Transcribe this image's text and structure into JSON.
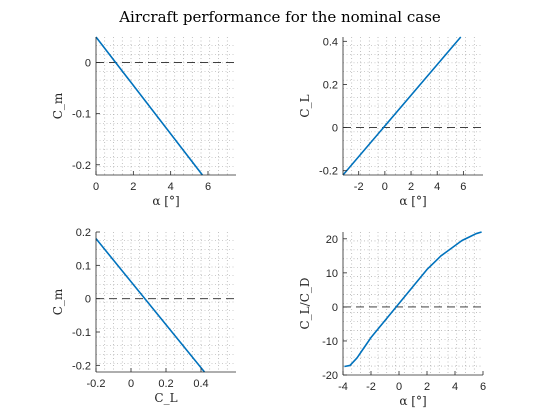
{
  "figure": {
    "title": "Aircraft performance for the nominal case"
  },
  "colors": {
    "series": "#0072BD",
    "reference": "#262626",
    "axis": "#262626",
    "grid": "#9a9a9a"
  },
  "chart_data": [
    {
      "type": "line",
      "xlabel": "α [°]",
      "ylabel": "C_m",
      "xlim": [
        0,
        7.5
      ],
      "ylim": [
        -0.22,
        0.05
      ],
      "xticks": [
        0,
        2,
        4,
        6
      ],
      "yticks": [
        -0.2,
        -0.1,
        0
      ],
      "xtick_labels": [
        "0",
        "2",
        "4",
        "6"
      ],
      "ytick_labels": [
        "-0.2",
        "-0.1",
        "0"
      ],
      "grid": "minor-dotted",
      "reference_line_y": 0,
      "series": [
        {
          "x": [
            0,
            5.7
          ],
          "y": [
            0.05,
            -0.22
          ]
        }
      ]
    },
    {
      "type": "line",
      "xlabel": "α [°]",
      "ylabel": "C_L",
      "xlim": [
        -3.2,
        7.5
      ],
      "ylim": [
        -0.22,
        0.42
      ],
      "xticks": [
        -2,
        0,
        2,
        4,
        6
      ],
      "yticks": [
        -0.2,
        0,
        0.2,
        0.4
      ],
      "xtick_labels": [
        "-2",
        "0",
        "2",
        "4",
        "6"
      ],
      "ytick_labels": [
        "-0.2",
        "0",
        "0.2",
        "0.4"
      ],
      "grid": "minor-dotted",
      "reference_line_y": 0,
      "series": [
        {
          "x": [
            -3.2,
            5.8
          ],
          "y": [
            -0.22,
            0.42
          ]
        }
      ]
    },
    {
      "type": "line",
      "xlabel": "C_L",
      "ylabel": "C_m",
      "xlim": [
        -0.2,
        0.6
      ],
      "ylim": [
        -0.22,
        0.2
      ],
      "xticks": [
        -0.2,
        0,
        0.2,
        0.4
      ],
      "yticks": [
        -0.2,
        -0.1,
        0,
        0.1,
        0.2
      ],
      "xtick_labels": [
        "-0.2",
        "0",
        "0.2",
        "0.4"
      ],
      "ytick_labels": [
        "-0.2",
        "-0.1",
        "0",
        "0.1",
        "0.2"
      ],
      "grid": "minor-dotted",
      "reference_line_y": 0,
      "series": [
        {
          "x": [
            -0.2,
            0.42
          ],
          "y": [
            0.18,
            -0.22
          ]
        }
      ]
    },
    {
      "type": "line",
      "xlabel": "α [°]",
      "ylabel": "C_L/C_D",
      "xlim": [
        -4,
        6
      ],
      "ylim": [
        -20,
        22
      ],
      "xticks": [
        -4,
        -2,
        0,
        2,
        4,
        6
      ],
      "yticks": [
        -20,
        -10,
        0,
        10,
        20
      ],
      "xtick_labels": [
        "-4",
        "-2",
        "0",
        "2",
        "4",
        "6"
      ],
      "ytick_labels": [
        "-20",
        "-10",
        "0",
        "10",
        "20"
      ],
      "grid": "minor-dotted",
      "reference_line_y": 0,
      "series": [
        {
          "x": [
            -3.9,
            -3.5,
            -3.0,
            -2.5,
            -2.0,
            -1.5,
            -1.0,
            -0.5,
            0.0,
            0.5,
            1.0,
            1.5,
            2.0,
            2.5,
            3.0,
            3.5,
            4.0,
            4.5,
            5.0,
            5.5,
            5.9
          ],
          "y": [
            -17.5,
            -17.2,
            -15.0,
            -12.0,
            -9.0,
            -6.5,
            -4.0,
            -1.5,
            1.0,
            3.5,
            6.0,
            8.5,
            11.0,
            13.0,
            15.0,
            16.5,
            18.0,
            19.5,
            20.5,
            21.5,
            22.0
          ]
        }
      ]
    }
  ]
}
